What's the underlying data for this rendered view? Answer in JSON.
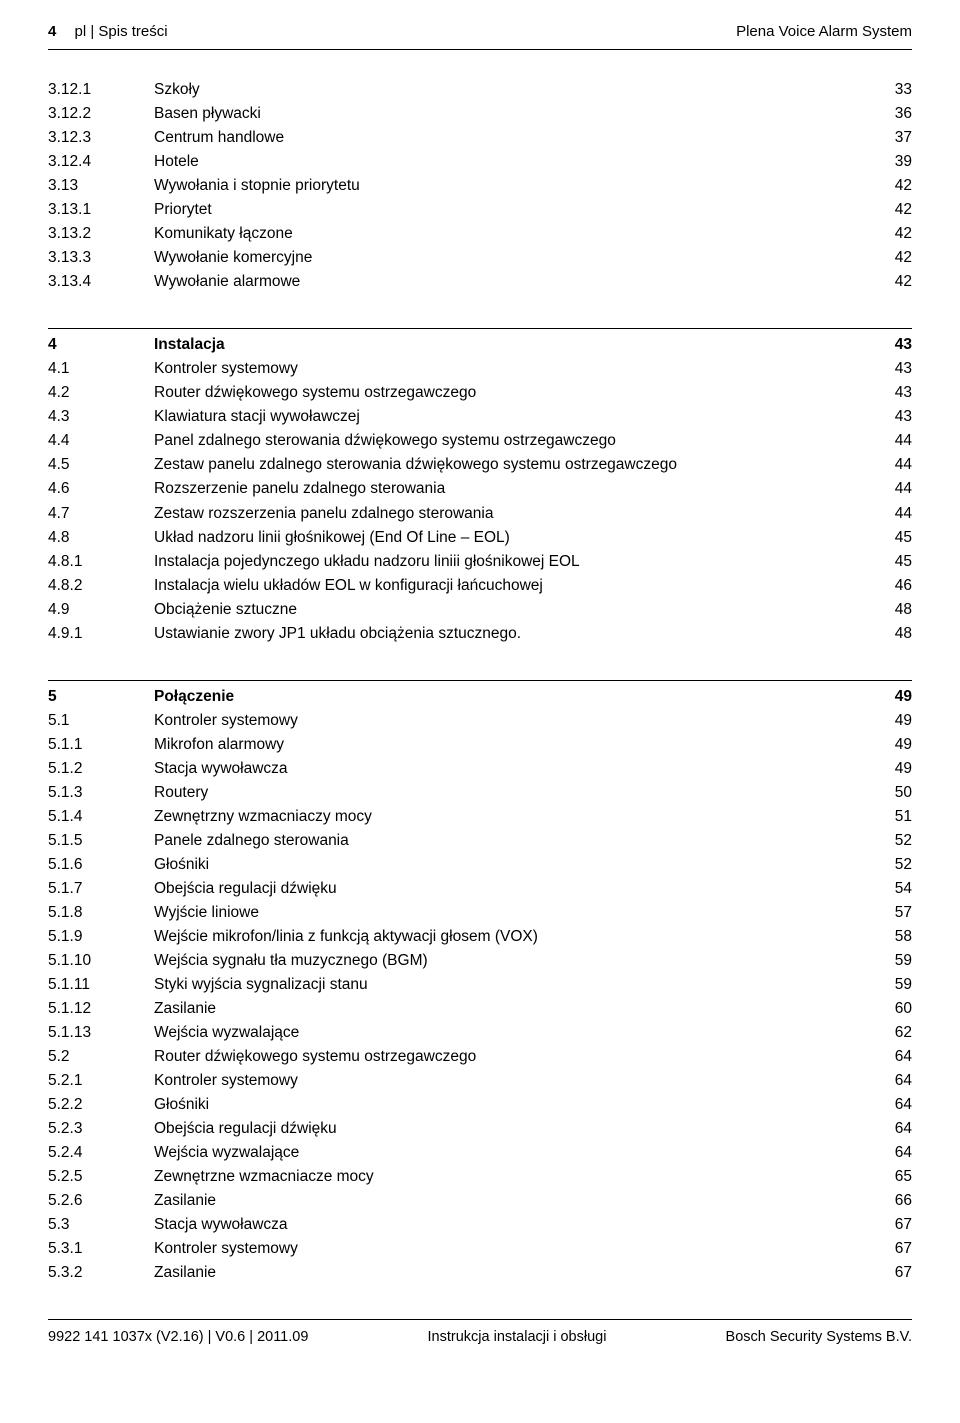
{
  "header": {
    "page_number": "4",
    "breadcrumb": "pl | Spis treści",
    "product": "Plena Voice Alarm System"
  },
  "blocks": [
    {
      "rows": [
        {
          "num": "3.12.1",
          "title": "Szkoły",
          "page": "33"
        },
        {
          "num": "3.12.2",
          "title": "Basen pływacki",
          "page": "36"
        },
        {
          "num": "3.12.3",
          "title": "Centrum handlowe",
          "page": "37"
        },
        {
          "num": "3.12.4",
          "title": "Hotele",
          "page": "39"
        },
        {
          "num": "3.13",
          "title": "Wywołania i stopnie priorytetu",
          "page": "42"
        },
        {
          "num": "3.13.1",
          "title": "Priorytet",
          "page": "42"
        },
        {
          "num": "3.13.2",
          "title": "Komunikaty łączone",
          "page": "42"
        },
        {
          "num": "3.13.3",
          "title": "Wywołanie komercyjne",
          "page": "42"
        },
        {
          "num": "3.13.4",
          "title": "Wywołanie alarmowe",
          "page": "42"
        }
      ]
    },
    {
      "head": {
        "num": "4",
        "title": "Instalacja",
        "page": "43"
      },
      "rows": [
        {
          "num": "4.1",
          "title": "Kontroler systemowy",
          "page": "43"
        },
        {
          "num": "4.2",
          "title": "Router dźwiękowego systemu ostrzegawczego",
          "page": "43"
        },
        {
          "num": "4.3",
          "title": "Klawiatura stacji wywoławczej",
          "page": "43"
        },
        {
          "num": "4.4",
          "title": "Panel zdalnego sterowania dźwiękowego systemu ostrzegawczego",
          "page": "44"
        },
        {
          "num": "4.5",
          "title": "Zestaw panelu zdalnego sterowania dźwiękowego systemu ostrzegawczego",
          "page": "44"
        },
        {
          "num": "4.6",
          "title": "Rozszerzenie panelu zdalnego sterowania",
          "page": "44"
        },
        {
          "num": "4.7",
          "title": "Zestaw rozszerzenia panelu zdalnego sterowania",
          "page": "44"
        },
        {
          "num": "4.8",
          "title": "Układ nadzoru linii głośnikowej (End Of Line – EOL)",
          "page": "45"
        },
        {
          "num": "4.8.1",
          "title": "Instalacja pojedynczego układu nadzoru liniii głośnikowej EOL",
          "page": "45"
        },
        {
          "num": "4.8.2",
          "title": "Instalacja wielu układów EOL w konfiguracji łańcuchowej",
          "page": "46"
        },
        {
          "num": "4.9",
          "title": "Obciążenie sztuczne",
          "page": "48"
        },
        {
          "num": "4.9.1",
          "title": "Ustawianie zwory JP1 układu obciążenia sztucznego.",
          "page": "48"
        }
      ]
    },
    {
      "head": {
        "num": "5",
        "title": "Połączenie",
        "page": "49"
      },
      "rows": [
        {
          "num": "5.1",
          "title": "Kontroler systemowy",
          "page": "49"
        },
        {
          "num": "5.1.1",
          "title": "Mikrofon alarmowy",
          "page": "49"
        },
        {
          "num": "5.1.2",
          "title": "Stacja wywoławcza",
          "page": "49"
        },
        {
          "num": "5.1.3",
          "title": "Routery",
          "page": "50"
        },
        {
          "num": "5.1.4",
          "title": "Zewnętrzny wzmacniaczy mocy",
          "page": "51"
        },
        {
          "num": "5.1.5",
          "title": "Panele zdalnego sterowania",
          "page": "52"
        },
        {
          "num": "5.1.6",
          "title": "Głośniki",
          "page": "52"
        },
        {
          "num": "5.1.7",
          "title": "Obejścia regulacji dźwięku",
          "page": "54"
        },
        {
          "num": "5.1.8",
          "title": "Wyjście liniowe",
          "page": "57"
        },
        {
          "num": "5.1.9",
          "title": "Wejście mikrofon/linia z funkcją aktywacji głosem (VOX)",
          "page": "58"
        },
        {
          "num": "5.1.10",
          "title": "Wejścia sygnału tła muzycznego (BGM)",
          "page": "59"
        },
        {
          "num": "5.1.11",
          "title": "Styki wyjścia sygnalizacji stanu",
          "page": "59"
        },
        {
          "num": "5.1.12",
          "title": "Zasilanie",
          "page": "60"
        },
        {
          "num": "5.1.13",
          "title": "Wejścia wyzwalające",
          "page": "62"
        },
        {
          "num": "5.2",
          "title": "Router dźwiękowego systemu ostrzegawczego",
          "page": "64"
        },
        {
          "num": "5.2.1",
          "title": "Kontroler systemowy",
          "page": "64"
        },
        {
          "num": "5.2.2",
          "title": "Głośniki",
          "page": "64"
        },
        {
          "num": "5.2.3",
          "title": "Obejścia regulacji dźwięku",
          "page": "64"
        },
        {
          "num": "5.2.4",
          "title": "Wejścia wyzwalające",
          "page": "64"
        },
        {
          "num": "5.2.5",
          "title": "Zewnętrzne wzmacniacze mocy",
          "page": "65"
        },
        {
          "num": "5.2.6",
          "title": "Zasilanie",
          "page": "66"
        },
        {
          "num": "5.3",
          "title": "Stacja wywoławcza",
          "page": "67"
        },
        {
          "num": "5.3.1",
          "title": "Kontroler systemowy",
          "page": "67"
        },
        {
          "num": "5.3.2",
          "title": "Zasilanie",
          "page": "67"
        }
      ]
    }
  ],
  "footer": {
    "left": "9922 141 1037x (V2.16) | V0.6 | 2011.09",
    "center": "Instrukcja instalacji i obsługi",
    "right": "Bosch Security Systems B.V."
  }
}
